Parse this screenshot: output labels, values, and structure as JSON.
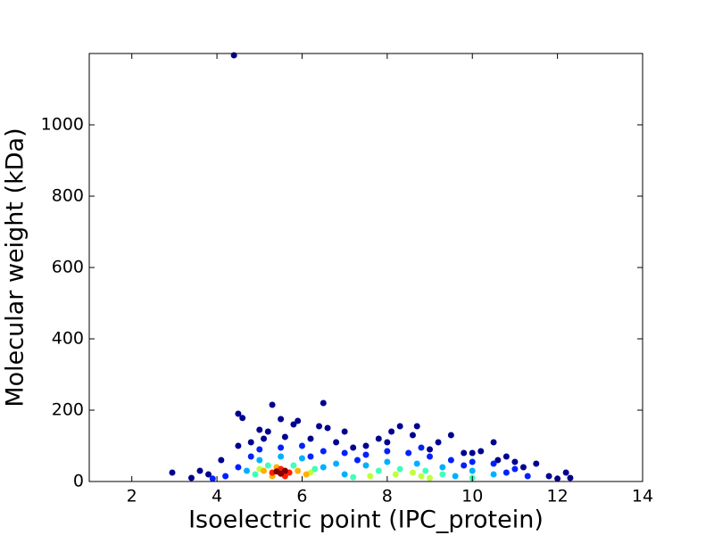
{
  "chart_data": {
    "type": "scatter",
    "xlabel": "Isoelectric point (IPC_protein)",
    "ylabel": "Molecular weight (kDa)",
    "xlim": [
      1,
      14
    ],
    "xticks": [
      2,
      4,
      6,
      8,
      10,
      12,
      14
    ],
    "ylim": [
      0,
      1200
    ],
    "yticks": [
      0,
      200,
      400,
      600,
      800,
      1000
    ],
    "series": [
      {
        "color": "#00008f",
        "x": [
          4.4,
          2.95,
          3.4,
          3.6,
          4.5,
          4.6,
          5.3,
          6.5,
          5.5,
          5.9,
          5.0,
          5.2,
          4.8,
          6.4,
          6.6,
          7.0,
          5.8,
          7.8,
          8.1,
          8.3,
          8.7,
          8.6,
          9.2,
          9.5,
          10.5,
          9.8,
          10.2,
          10.8,
          11.0,
          11.5,
          12.2,
          12.3,
          11.8,
          12.0,
          4.1,
          3.8,
          7.5,
          6.8,
          5.6,
          8.0,
          9.0,
          10.0,
          10.6,
          11.2,
          7.2,
          6.2,
          4.5,
          5.1
        ],
        "values": [
          1195,
          25,
          10,
          30,
          190,
          178,
          215,
          220,
          175,
          170,
          145,
          140,
          110,
          155,
          150,
          140,
          160,
          120,
          140,
          155,
          155,
          130,
          110,
          130,
          110,
          80,
          85,
          70,
          55,
          50,
          25,
          10,
          15,
          8,
          60,
          20,
          100,
          110,
          125,
          110,
          90,
          80,
          60,
          40,
          95,
          120,
          100,
          120
        ]
      },
      {
        "color": "#0020ff",
        "x": [
          5.0,
          5.5,
          6.0,
          6.5,
          7.0,
          7.5,
          8.0,
          8.5,
          9.0,
          9.5,
          10.0,
          10.5,
          11.0,
          4.5,
          4.8,
          6.2,
          7.3,
          8.8,
          9.8,
          10.8,
          11.3,
          4.2,
          3.9
        ],
        "values": [
          90,
          95,
          100,
          85,
          80,
          75,
          85,
          80,
          70,
          60,
          55,
          50,
          35,
          40,
          70,
          70,
          60,
          95,
          45,
          25,
          15,
          15,
          8
        ]
      },
      {
        "color": "#00b0ff",
        "x": [
          5.0,
          5.5,
          6.0,
          6.8,
          7.5,
          8.0,
          8.7,
          9.3,
          10.0,
          10.5,
          4.7,
          6.5,
          7.0,
          9.6
        ],
        "values": [
          60,
          70,
          65,
          50,
          45,
          55,
          50,
          40,
          30,
          20,
          30,
          40,
          20,
          15
        ]
      },
      {
        "color": "#40ffb8",
        "x": [
          5.2,
          5.8,
          6.3,
          7.8,
          8.3,
          8.9,
          9.3,
          4.9,
          7.2,
          10.0
        ],
        "values": [
          45,
          45,
          35,
          30,
          35,
          30,
          20,
          20,
          12,
          10
        ]
      },
      {
        "color": "#c0ff40",
        "x": [
          8.2,
          8.6,
          8.8,
          5.0,
          6.2,
          7.6,
          9.0
        ],
        "values": [
          20,
          25,
          15,
          35,
          25,
          15,
          10
        ]
      },
      {
        "color": "#ffb000",
        "x": [
          5.1,
          5.4,
          5.9,
          6.1,
          5.3
        ],
        "values": [
          30,
          40,
          30,
          20,
          15
        ]
      },
      {
        "color": "#ff2000",
        "x": [
          5.3,
          5.5,
          5.7,
          5.6
        ],
        "values": [
          25,
          35,
          25,
          15
        ]
      },
      {
        "color": "#800000",
        "x": [
          5.4,
          5.6,
          5.5
        ],
        "values": [
          28,
          30,
          22
        ]
      }
    ]
  }
}
